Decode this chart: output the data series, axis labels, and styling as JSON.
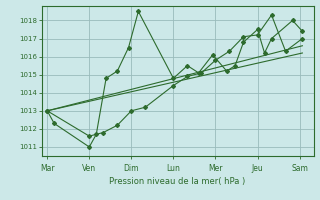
{
  "xlabel": "Pression niveau de la mer( hPa )",
  "background_color": "#cce8e8",
  "grid_color": "#99bbbb",
  "line_color": "#2d6b2d",
  "ylim": [
    1010.5,
    1018.8
  ],
  "yticks": [
    1011,
    1012,
    1013,
    1014,
    1015,
    1016,
    1017,
    1018
  ],
  "day_labels": [
    "Mar",
    "Ven",
    "Dim",
    "Lun",
    "Mer",
    "Jeu",
    "Sam"
  ],
  "day_positions": [
    0,
    1.5,
    3,
    4.5,
    6,
    7.5,
    9
  ],
  "xlim": [
    -0.2,
    9.5
  ],
  "series1_x": [
    0,
    0.25,
    1.5,
    1.75,
    2.1,
    2.5,
    2.9,
    3.25,
    4.5,
    5.0,
    5.4,
    5.9,
    6.4,
    6.7,
    7.0,
    7.5,
    7.75,
    8.0,
    8.75,
    9.1
  ],
  "series1_y": [
    1013.0,
    1012.3,
    1011.0,
    1011.7,
    1014.8,
    1015.2,
    1016.5,
    1018.5,
    1014.8,
    1015.5,
    1015.1,
    1016.1,
    1015.2,
    1015.5,
    1016.8,
    1017.5,
    1016.2,
    1017.0,
    1018.0,
    1017.4
  ],
  "series2_x": [
    0,
    1.5,
    2.0,
    2.5,
    3.0,
    3.5,
    4.5,
    5.0,
    5.5,
    6.0,
    6.5,
    7.0,
    7.5,
    8.0,
    8.5,
    9.1
  ],
  "series2_y": [
    1013.0,
    1011.6,
    1011.8,
    1012.2,
    1013.0,
    1013.2,
    1014.4,
    1014.9,
    1015.1,
    1015.8,
    1016.3,
    1017.1,
    1017.2,
    1018.3,
    1016.3,
    1017.0
  ],
  "trend1_x": [
    0,
    9.1
  ],
  "trend1_y": [
    1013.0,
    1016.6
  ],
  "trend2_x": [
    0,
    9.1
  ],
  "trend2_y": [
    1013.0,
    1016.2
  ]
}
